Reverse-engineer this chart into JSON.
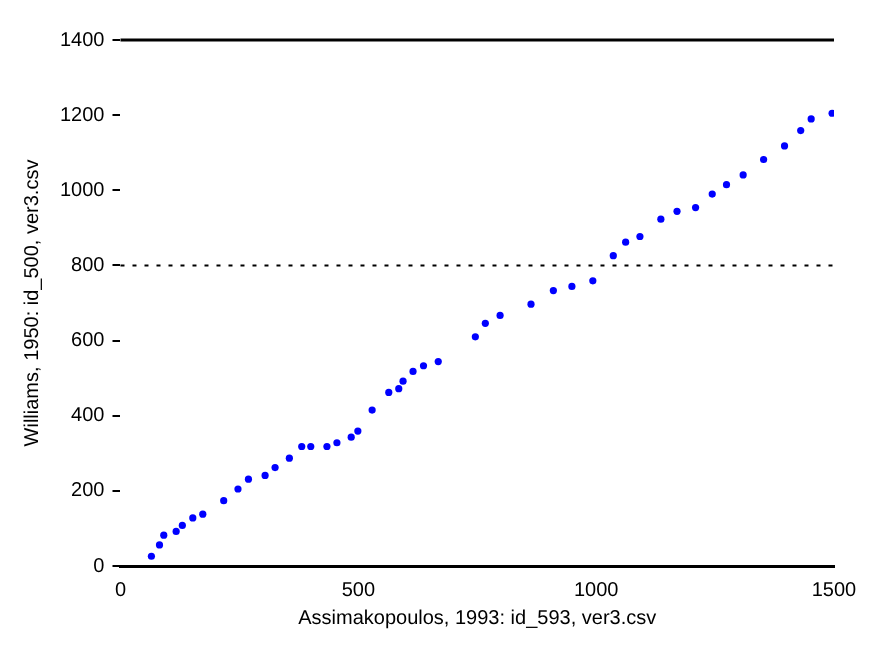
{
  "chart_data": {
    "type": "scatter",
    "xlabel": "Assimakopoulos, 1993: id_593, ver3.csv",
    "ylabel": "Williams, 1950: id_500, ver3.csv",
    "xlim": [
      0,
      1500
    ],
    "xticks": [
      0,
      500,
      1000,
      1500
    ],
    "ylim": [
      0,
      1400
    ],
    "yticks": [
      0,
      200,
      400,
      600,
      800,
      1000,
      1200,
      1400
    ],
    "grid": false,
    "legend": false,
    "marker": "circle",
    "ref_lines": [
      {
        "axis": "y",
        "value": 1400,
        "color": "#000000",
        "line_style": "solid"
      },
      {
        "axis": "y",
        "value": 800,
        "color": "#000000",
        "line_style": "dotted"
      }
    ],
    "series": [
      {
        "color": "#0000ff",
        "x": [
          65,
          82,
          91,
          117,
          130,
          152,
          173,
          217,
          247,
          269,
          304,
          325,
          355,
          381,
          400,
          434,
          455,
          485,
          499,
          529,
          564,
          585,
          594,
          615,
          637,
          668,
          746,
          767,
          798,
          863,
          910,
          949,
          993,
          1036,
          1062,
          1092,
          1136,
          1170,
          1209,
          1244,
          1274,
          1309,
          1352,
          1396,
          1430,
          1452,
          1496
        ],
        "values": [
          26,
          56,
          82,
          92,
          108,
          128,
          138,
          174,
          205,
          231,
          241,
          262,
          287,
          318,
          318,
          318,
          328,
          343,
          359,
          415,
          462,
          472,
          492,
          518,
          533,
          544,
          610,
          646,
          667,
          697,
          733,
          744,
          759,
          826,
          862,
          877,
          923,
          944,
          954,
          990,
          1015,
          1041,
          1082,
          1118,
          1159,
          1190,
          1205
        ]
      }
    ]
  }
}
